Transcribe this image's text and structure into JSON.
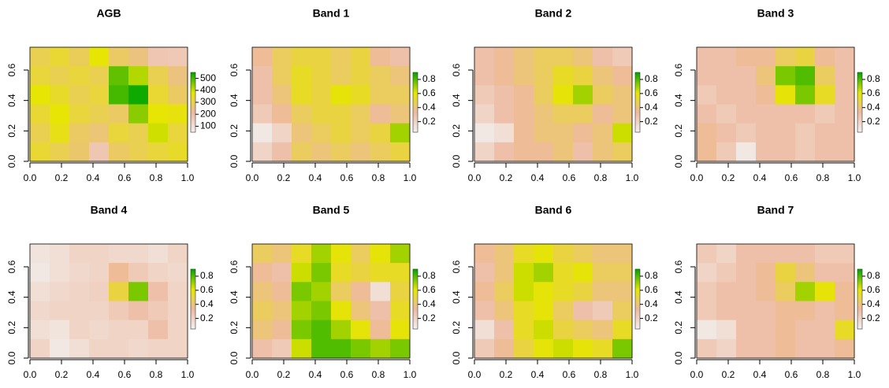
{
  "chart_data": [
    {
      "type": "heatmap",
      "title": "AGB",
      "xlim": [
        0,
        1
      ],
      "ylim": [
        0,
        0.75
      ],
      "zlim": [
        50,
        550
      ],
      "xticks": [
        {
          "value": 0,
          "label": "0.0"
        },
        0.2,
        0.4,
        0.6,
        0.8,
        {
          "value": 1,
          "label": "1.0"
        }
      ],
      "yticks": [
        {
          "value": 0,
          "label": "0.0"
        },
        0.2,
        0.4,
        0.6
      ],
      "zticks": [
        100,
        200,
        300,
        400,
        500
      ],
      "colors": [
        "#F2F2F2",
        "#EEB99F",
        "#E6E600",
        "#00A600"
      ],
      "values": [
        [
          300,
          330,
          290,
          380,
          280,
          250,
          180,
          170
        ],
        [
          320,
          300,
          320,
          300,
          480,
          420,
          300,
          250
        ],
        [
          380,
          340,
          300,
          320,
          500,
          540,
          330,
          280
        ],
        [
          330,
          380,
          320,
          300,
          280,
          450,
          380,
          370
        ],
        [
          300,
          360,
          280,
          260,
          320,
          300,
          400,
          320
        ],
        [
          330,
          300,
          270,
          180,
          280,
          300,
          320,
          340
        ]
      ]
    },
    {
      "type": "heatmap",
      "title": "Band 1",
      "xlim": [
        0,
        1
      ],
      "ylim": [
        0,
        0.75
      ],
      "zlim": [
        0.05,
        0.9
      ],
      "xticks": [
        {
          "value": 0,
          "label": "0.0"
        },
        0.2,
        0.4,
        0.6,
        0.8,
        {
          "value": 1,
          "label": "1.0"
        }
      ],
      "yticks": [
        {
          "value": 0,
          "label": "0.0"
        },
        0.2,
        0.4,
        0.6
      ],
      "zticks": [
        0.2,
        0.4,
        0.6,
        0.8
      ],
      "colors": [
        "#F2F2F2",
        "#EEB99F",
        "#E6E600",
        "#00A600"
      ],
      "values": [
        [
          0.35,
          0.45,
          0.5,
          0.5,
          0.45,
          0.5,
          0.35,
          0.3
        ],
        [
          0.3,
          0.45,
          0.55,
          0.5,
          0.45,
          0.5,
          0.45,
          0.4
        ],
        [
          0.3,
          0.4,
          0.55,
          0.5,
          0.6,
          0.55,
          0.45,
          0.45
        ],
        [
          0.25,
          0.35,
          0.45,
          0.5,
          0.5,
          0.45,
          0.35,
          0.4
        ],
        [
          0.1,
          0.2,
          0.4,
          0.45,
          0.5,
          0.45,
          0.5,
          0.7
        ],
        [
          0.2,
          0.3,
          0.45,
          0.4,
          0.45,
          0.4,
          0.45,
          0.5
        ]
      ]
    },
    {
      "type": "heatmap",
      "title": "Band 2",
      "xlim": [
        0,
        1
      ],
      "ylim": [
        0,
        0.75
      ],
      "zlim": [
        0.05,
        0.9
      ],
      "xticks": [
        {
          "value": 0,
          "label": "0.0"
        },
        0.2,
        0.4,
        0.6,
        0.8,
        {
          "value": 1,
          "label": "1.0"
        }
      ],
      "yticks": [
        {
          "value": 0,
          "label": "0.0"
        },
        0.2,
        0.4,
        0.6
      ],
      "zticks": [
        0.2,
        0.4,
        0.6,
        0.8
      ],
      "colors": [
        "#F2F2F2",
        "#EEB99F",
        "#E6E600",
        "#00A600"
      ],
      "values": [
        [
          0.3,
          0.35,
          0.4,
          0.45,
          0.45,
          0.4,
          0.3,
          0.25
        ],
        [
          0.3,
          0.35,
          0.4,
          0.45,
          0.55,
          0.5,
          0.4,
          0.35
        ],
        [
          0.25,
          0.3,
          0.35,
          0.45,
          0.6,
          0.7,
          0.45,
          0.4
        ],
        [
          0.2,
          0.3,
          0.35,
          0.4,
          0.45,
          0.45,
          0.35,
          0.4
        ],
        [
          0.1,
          0.15,
          0.35,
          0.4,
          0.4,
          0.35,
          0.4,
          0.65
        ],
        [
          0.2,
          0.3,
          0.35,
          0.35,
          0.4,
          0.3,
          0.4,
          0.45
        ]
      ]
    },
    {
      "type": "heatmap",
      "title": "Band 3",
      "xlim": [
        0,
        1
      ],
      "ylim": [
        0,
        0.75
      ],
      "zlim": [
        0.05,
        0.9
      ],
      "xticks": [
        {
          "value": 0,
          "label": "0.0"
        },
        0.2,
        0.4,
        0.6,
        0.8,
        {
          "value": 1,
          "label": "1.0"
        }
      ],
      "yticks": [
        {
          "value": 0,
          "label": "0.0"
        },
        0.2,
        0.4,
        0.6
      ],
      "zticks": [
        0.2,
        0.4,
        0.6,
        0.8
      ],
      "colors": [
        "#F2F2F2",
        "#EEB99F",
        "#E6E600",
        "#00A600"
      ],
      "values": [
        [
          0.3,
          0.3,
          0.35,
          0.35,
          0.45,
          0.5,
          0.35,
          0.3
        ],
        [
          0.3,
          0.3,
          0.3,
          0.4,
          0.75,
          0.8,
          0.45,
          0.3
        ],
        [
          0.25,
          0.3,
          0.3,
          0.35,
          0.6,
          0.75,
          0.55,
          0.3
        ],
        [
          0.3,
          0.25,
          0.3,
          0.3,
          0.3,
          0.3,
          0.25,
          0.3
        ],
        [
          0.35,
          0.3,
          0.25,
          0.3,
          0.3,
          0.25,
          0.3,
          0.3
        ],
        [
          0.35,
          0.25,
          0.1,
          0.3,
          0.3,
          0.25,
          0.3,
          0.3
        ]
      ]
    },
    {
      "type": "heatmap",
      "title": "Band 4",
      "xlim": [
        0,
        1
      ],
      "ylim": [
        0,
        0.75
      ],
      "zlim": [
        0.05,
        0.9
      ],
      "xticks": [
        {
          "value": 0,
          "label": "0.0"
        },
        0.2,
        0.4,
        0.6,
        0.8,
        {
          "value": 1,
          "label": "1.0"
        }
      ],
      "yticks": [
        {
          "value": 0,
          "label": "0.0"
        },
        0.2,
        0.4,
        0.6
      ],
      "zticks": [
        0.2,
        0.4,
        0.6,
        0.8
      ],
      "colors": [
        "#F2F2F2",
        "#EEB99F",
        "#E6E600",
        "#00A600"
      ],
      "values": [
        [
          0.12,
          0.15,
          0.2,
          0.2,
          0.18,
          0.18,
          0.15,
          0.2
        ],
        [
          0.1,
          0.15,
          0.18,
          0.2,
          0.35,
          0.25,
          0.2,
          0.18
        ],
        [
          0.15,
          0.18,
          0.2,
          0.22,
          0.5,
          0.75,
          0.3,
          0.2
        ],
        [
          0.18,
          0.2,
          0.2,
          0.2,
          0.25,
          0.3,
          0.25,
          0.2
        ],
        [
          0.15,
          0.12,
          0.2,
          0.18,
          0.2,
          0.2,
          0.3,
          0.2
        ],
        [
          0.2,
          0.1,
          0.15,
          0.2,
          0.2,
          0.18,
          0.2,
          0.2
        ]
      ]
    },
    {
      "type": "heatmap",
      "title": "Band 5",
      "xlim": [
        0,
        1
      ],
      "ylim": [
        0,
        0.75
      ],
      "zlim": [
        0.05,
        0.9
      ],
      "xticks": [
        {
          "value": 0,
          "label": "0.0"
        },
        0.2,
        0.4,
        0.6,
        0.8,
        {
          "value": 1,
          "label": "1.0"
        }
      ],
      "yticks": [
        {
          "value": 0,
          "label": "0.0"
        },
        0.2,
        0.4,
        0.6
      ],
      "zticks": [
        0.2,
        0.4,
        0.6,
        0.8
      ],
      "colors": [
        "#F2F2F2",
        "#EEB99F",
        "#E6E600",
        "#00A600"
      ],
      "values": [
        [
          0.45,
          0.4,
          0.55,
          0.7,
          0.6,
          0.45,
          0.6,
          0.7
        ],
        [
          0.35,
          0.3,
          0.65,
          0.75,
          0.55,
          0.5,
          0.55,
          0.55
        ],
        [
          0.4,
          0.35,
          0.75,
          0.7,
          0.45,
          0.35,
          0.15,
          0.5
        ],
        [
          0.45,
          0.4,
          0.7,
          0.75,
          0.6,
          0.4,
          0.3,
          0.55
        ],
        [
          0.4,
          0.35,
          0.75,
          0.8,
          0.7,
          0.6,
          0.35,
          0.6
        ],
        [
          0.3,
          0.25,
          0.65,
          0.8,
          0.8,
          0.75,
          0.7,
          0.75
        ]
      ]
    },
    {
      "type": "heatmap",
      "title": "Band 6",
      "xlim": [
        0,
        1
      ],
      "ylim": [
        0,
        0.75
      ],
      "zlim": [
        0.05,
        0.9
      ],
      "xticks": [
        {
          "value": 0,
          "label": "0.0"
        },
        0.2,
        0.4,
        0.6,
        0.8,
        {
          "value": 1,
          "label": "1.0"
        }
      ],
      "yticks": [
        {
          "value": 0,
          "label": "0.0"
        },
        0.2,
        0.4,
        0.6
      ],
      "zticks": [
        0.2,
        0.4,
        0.6,
        0.8
      ],
      "colors": [
        "#F2F2F2",
        "#EEB99F",
        "#E6E600",
        "#00A600"
      ],
      "values": [
        [
          0.35,
          0.4,
          0.55,
          0.6,
          0.5,
          0.45,
          0.4,
          0.4
        ],
        [
          0.3,
          0.4,
          0.65,
          0.7,
          0.55,
          0.6,
          0.45,
          0.45
        ],
        [
          0.35,
          0.45,
          0.65,
          0.6,
          0.55,
          0.5,
          0.4,
          0.4
        ],
        [
          0.3,
          0.4,
          0.55,
          0.6,
          0.45,
          0.3,
          0.25,
          0.45
        ],
        [
          0.15,
          0.3,
          0.55,
          0.65,
          0.5,
          0.45,
          0.4,
          0.55
        ],
        [
          0.25,
          0.35,
          0.5,
          0.6,
          0.65,
          0.6,
          0.55,
          0.75
        ]
      ]
    },
    {
      "type": "heatmap",
      "title": "Band 7",
      "xlim": [
        0,
        1
      ],
      "ylim": [
        0,
        0.75
      ],
      "zlim": [
        0.05,
        0.9
      ],
      "xticks": [
        {
          "value": 0,
          "label": "0.0"
        },
        0.2,
        0.4,
        0.6,
        0.8,
        {
          "value": 1,
          "label": "1.0"
        }
      ],
      "yticks": [
        {
          "value": 0,
          "label": "0.0"
        },
        0.2,
        0.4,
        0.6
      ],
      "zticks": [
        0.2,
        0.4,
        0.6,
        0.8
      ],
      "colors": [
        "#F2F2F2",
        "#EEB99F",
        "#E6E600",
        "#00A600"
      ],
      "values": [
        [
          0.25,
          0.2,
          0.3,
          0.3,
          0.3,
          0.3,
          0.25,
          0.25
        ],
        [
          0.2,
          0.25,
          0.3,
          0.35,
          0.5,
          0.4,
          0.3,
          0.3
        ],
        [
          0.25,
          0.3,
          0.3,
          0.35,
          0.45,
          0.7,
          0.6,
          0.35
        ],
        [
          0.25,
          0.3,
          0.3,
          0.3,
          0.35,
          0.35,
          0.3,
          0.35
        ],
        [
          0.1,
          0.15,
          0.3,
          0.3,
          0.35,
          0.3,
          0.3,
          0.55
        ],
        [
          0.25,
          0.2,
          0.3,
          0.3,
          0.35,
          0.3,
          0.3,
          0.35
        ]
      ]
    }
  ]
}
